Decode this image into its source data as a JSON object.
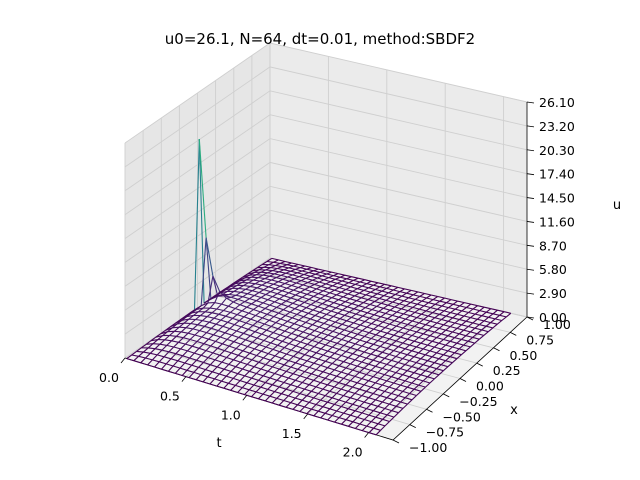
{
  "chart_data": {
    "type": "surface-wireframe",
    "title": "u0=26.1, N=64, dt=0.01, method:SBDF2",
    "xlabel": "t",
    "ylabel": "x",
    "zlabel": "u",
    "t_ticks": [
      "0.0",
      "0.5",
      "1.0",
      "1.5",
      "2.0"
    ],
    "t_tick_values": [
      0.0,
      0.5,
      1.0,
      1.5,
      2.0
    ],
    "x_ticks": [
      "−1.00",
      "−0.75",
      "−0.50",
      "−0.25",
      "0.00",
      "0.25",
      "0.50",
      "0.75",
      "1.00"
    ],
    "x_tick_values": [
      -1.0,
      -0.75,
      -0.5,
      -0.25,
      0.0,
      0.25,
      0.5,
      0.75,
      1.0
    ],
    "u_ticks": [
      "0.00",
      "2.90",
      "5.80",
      "8.70",
      "11.60",
      "14.50",
      "17.40",
      "20.30",
      "23.20",
      "26.10"
    ],
    "u_tick_values": [
      0.0,
      2.9,
      5.8,
      8.7,
      11.6,
      14.5,
      17.4,
      20.3,
      23.2,
      26.1
    ],
    "t_range": [
      0.0,
      2.2
    ],
    "x_range": [
      -1.0,
      1.0
    ],
    "u_range": [
      0.0,
      26.1
    ],
    "u0": 26.1,
    "colormap": "viridis",
    "grid": true
  }
}
